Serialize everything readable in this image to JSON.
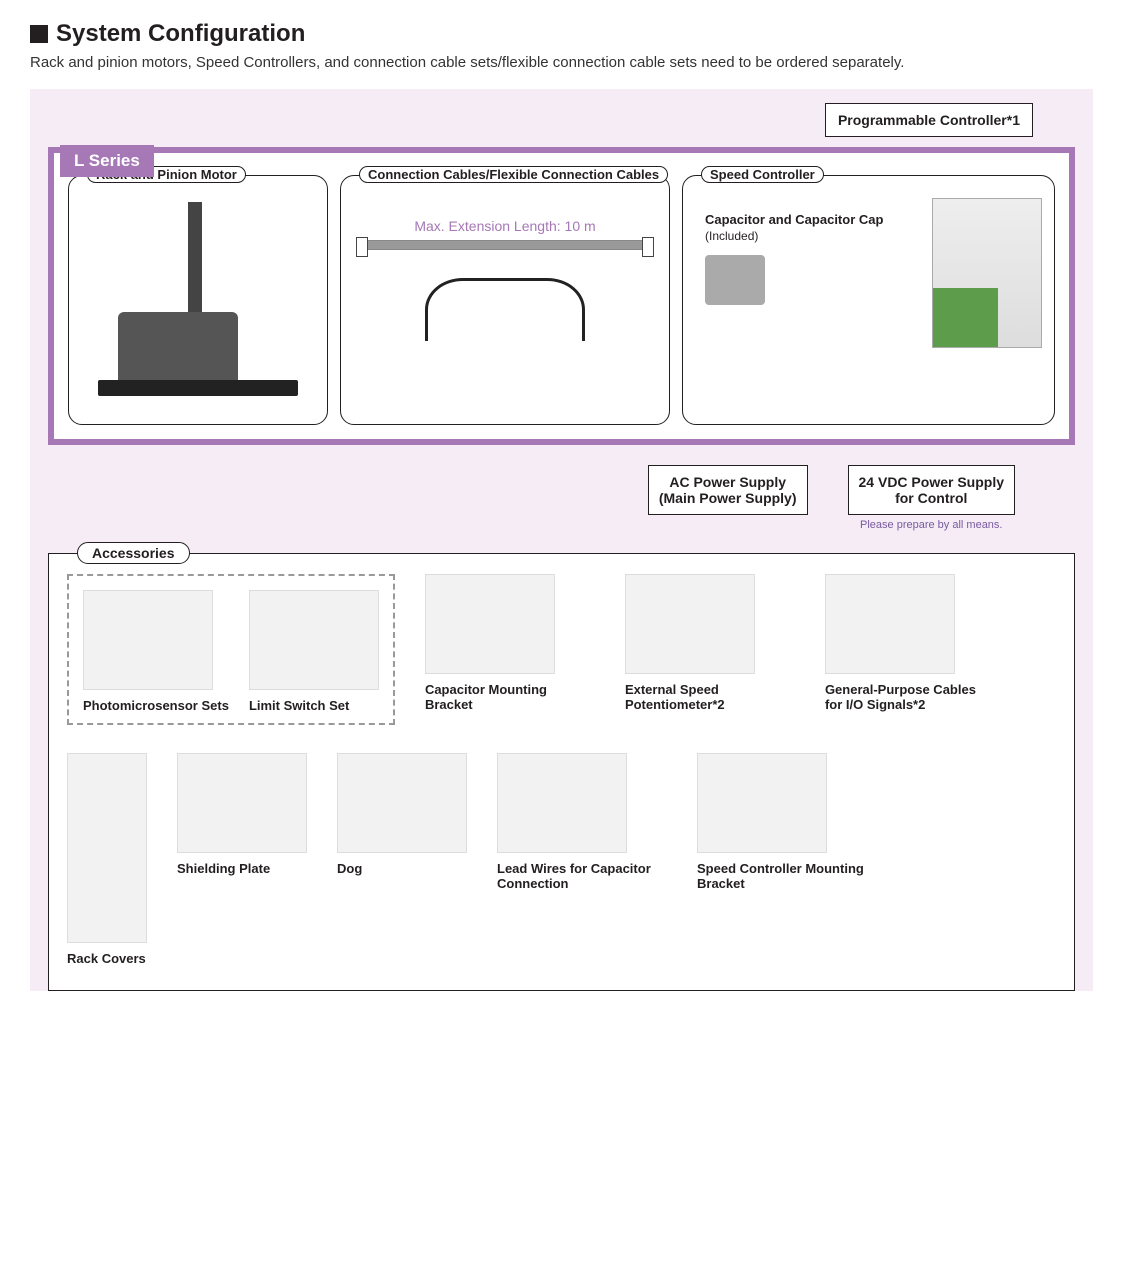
{
  "colors": {
    "purple_bg": "#f5ecf5",
    "purple_frame": "#a678b6",
    "text": "#231f20",
    "cable_gray": "#999999",
    "note_purple": "#7a5aa0",
    "terminal_green": "#5d9c4a"
  },
  "title": "System Configuration",
  "subtitle": "Rack and pinion motors, Speed Controllers, and connection cable sets/flexible connection cable sets need to be ordered separately.",
  "series_badge": "L Series",
  "prog_controller": "Programmable Controller*1",
  "modules": {
    "motor": {
      "label": "Rack and Pinion Motor"
    },
    "cables": {
      "label": "Connection Cables/Flexible Connection Cables",
      "extension_text": "Max. Extension Length: 10 m"
    },
    "speed": {
      "label": "Speed Controller",
      "capacitor_title": "Capacitor and Capacitor Cap",
      "capacitor_sub": "(Included)"
    }
  },
  "power": {
    "ac": {
      "line1": "AC Power Supply",
      "line2": "(Main Power Supply)"
    },
    "dc": {
      "line1": "24 VDC Power Supply",
      "line2": "for Control",
      "note": "Please prepare by all means."
    }
  },
  "accessories": {
    "label": "Accessories",
    "row1_dashed": [
      {
        "name": "Photomicrosensor Sets"
      },
      {
        "name": "Limit Switch Set"
      }
    ],
    "row1_rest": [
      {
        "name": "Capacitor Mounting Bracket"
      },
      {
        "name": "External Speed Potentiometer*2"
      },
      {
        "name": "General-Purpose Cables for I/O Signals*2"
      }
    ],
    "row2": [
      {
        "name": "Rack Covers",
        "tall": true
      },
      {
        "name": "Shielding Plate"
      },
      {
        "name": "Dog"
      },
      {
        "name": "Lead Wires for Capacitor Connection"
      },
      {
        "name": "Speed Controller Mounting Bracket"
      }
    ]
  }
}
